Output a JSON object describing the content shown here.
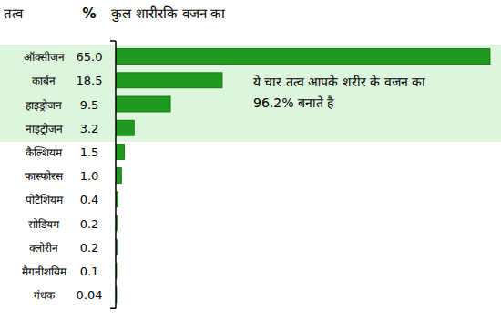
{
  "chart_data": {
    "type": "bar",
    "orientation": "horizontal",
    "title": "कुल शारीरकि वजन का",
    "category_header": "तत्व",
    "value_header": "%",
    "annotation": [
      "ये चार तत्व आपके शरीर के वजन का",
      "96.2% बनाते है"
    ],
    "categories": [
      "ऑक्सीजन",
      "कार्बन",
      "हाइड्रोजन",
      "नाइट्रोजन",
      "कैल्शियम",
      "फास्फोरस",
      "पोटैशियम",
      "सोडियम",
      "क्लोरीन",
      "मैगनीशयिम",
      "गंधक"
    ],
    "values": [
      65.0,
      18.5,
      9.5,
      3.2,
      1.5,
      1.0,
      0.4,
      0.2,
      0.2,
      0.1,
      0.04
    ],
    "value_labels": [
      "65.0",
      "18.5",
      "9.5",
      "3.2",
      "1.5",
      "1.0",
      "0.4",
      "0.2",
      "0.2",
      "0.1",
      "0.04"
    ],
    "data_labels": true,
    "color": "#1e9a1e",
    "xlim": [
      0,
      65
    ],
    "tick_labels": false,
    "grid": false
  }
}
